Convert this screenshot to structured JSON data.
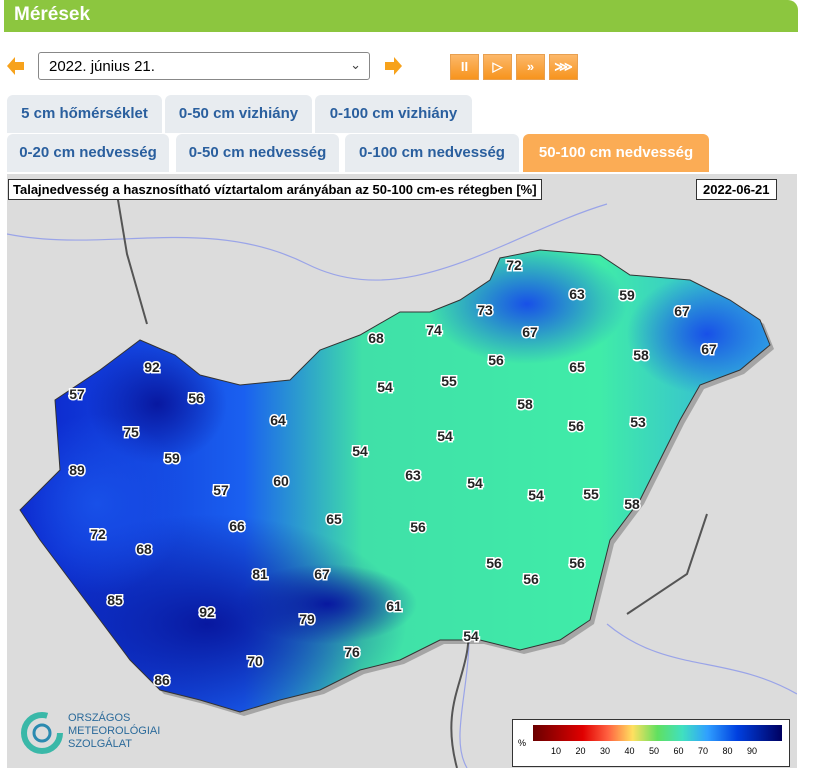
{
  "header": {
    "title": "Mérések"
  },
  "date_select": {
    "value": "2022. június 21."
  },
  "playback": {
    "buttons": [
      {
        "icon": "pause-icon",
        "glyph": "II"
      },
      {
        "icon": "play-icon",
        "glyph": "▷"
      },
      {
        "icon": "fast-forward-icon",
        "glyph": "»"
      },
      {
        "icon": "fastest-forward-icon",
        "glyph": "⋙"
      }
    ]
  },
  "tabs_row1": [
    "5 cm hőmérséklet",
    "0-50 cm vizhiány",
    "0-100 cm vizhiány"
  ],
  "tabs_row2": [
    "0-20 cm nedvesség",
    "0-50 cm nedvesség",
    "0-100 cm nedvesség",
    "50-100 cm nedvesség"
  ],
  "active_tab": "50-100 cm nedvesség",
  "map": {
    "title": "Talajnedvesség a hasznosítható víztartalom arányában az 50-100 cm-es rétegben [%]",
    "date": "2022-06-21",
    "station_values": [
      72,
      63,
      59,
      67,
      67,
      73,
      74,
      67,
      68,
      56,
      65,
      58,
      92,
      55,
      54,
      57,
      56,
      58,
      64,
      56,
      53,
      75,
      54,
      54,
      59,
      63,
      60,
      54,
      54,
      55,
      89,
      57,
      58,
      66,
      65,
      56,
      72,
      68,
      56,
      56,
      56,
      81,
      67,
      85,
      92,
      79,
      61,
      54,
      76,
      70,
      86
    ]
  },
  "logo": {
    "lines": [
      "ORSZÁGOS",
      "METEOROLÓGIAI",
      "SZOLGÁLAT"
    ]
  },
  "legend": {
    "unit": "%",
    "ticks": [
      "10",
      "20",
      "30",
      "40",
      "50",
      "60",
      "70",
      "80",
      "90"
    ]
  },
  "colors": {
    "header": "#8cc63f",
    "active_tab": "#fbac55",
    "tab_text": "#2a5f9e"
  }
}
